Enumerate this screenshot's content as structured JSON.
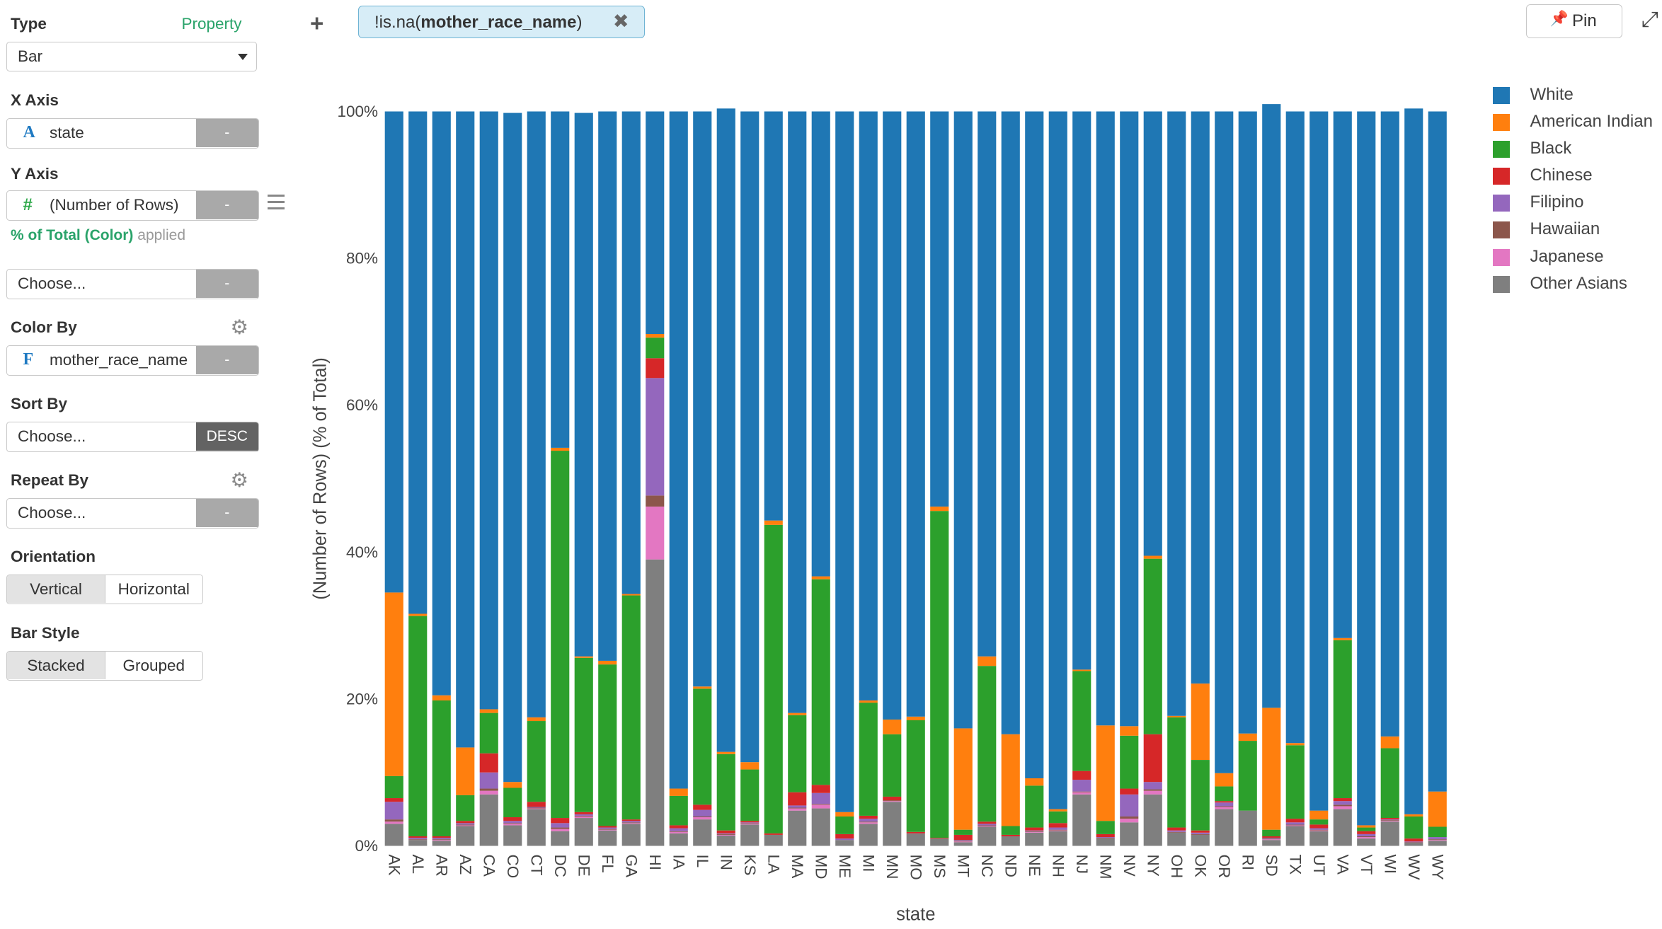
{
  "panel": {
    "type_label": "Type",
    "property_link": "Property",
    "type_value": "Bar",
    "x_axis_label": "X Axis",
    "x_axis_icon": "A",
    "x_axis_field": "state",
    "x_axis_btn": "-",
    "y_axis_label": "Y Axis",
    "y_axis_icon": "#",
    "y_axis_field": "(Number of Rows)",
    "y_axis_btn": "-",
    "y_applied_calc": "% of Total (Color)",
    "y_applied_suffix": "applied",
    "extra_choose": "Choose...",
    "extra_btn": "-",
    "color_by_label": "Color By",
    "color_by_icon": "F",
    "color_by_field": "mother_race_name",
    "color_by_btn": "-",
    "sort_by_label": "Sort By",
    "sort_by_field": "Choose...",
    "sort_by_btn": "DESC",
    "repeat_by_label": "Repeat By",
    "repeat_by_field": "Choose...",
    "repeat_by_btn": "-",
    "orientation_label": "Orientation",
    "orientation_options": [
      "Vertical",
      "Horizontal"
    ],
    "orientation_selected": "Vertical",
    "bar_style_label": "Bar Style",
    "bar_style_options": [
      "Stacked",
      "Grouped"
    ],
    "bar_style_selected": "Stacked"
  },
  "toolbar": {
    "add_icon": "+",
    "filter_text_prefix": "!is.na(",
    "filter_text_field": "mother_race_name",
    "filter_text_suffix": ")",
    "filter_remove_icon": "✖",
    "pin_label": "Pin",
    "pin_icon": "pushpin-icon",
    "expand_icon": "expand-icon"
  },
  "chart_data": {
    "type": "bar",
    "stacked": true,
    "xlabel": "state",
    "ylabel": "(Number of Rows) (% of Total)",
    "ylim": [
      0,
      100
    ],
    "yticks": [
      "0%",
      "20%",
      "40%",
      "60%",
      "80%",
      "100%"
    ],
    "grid": false,
    "legend_position": "right",
    "categories": [
      "AK",
      "AL",
      "AR",
      "AZ",
      "CA",
      "CO",
      "CT",
      "DC",
      "DE",
      "FL",
      "GA",
      "HI",
      "IA",
      "IL",
      "IN",
      "KS",
      "LA",
      "MA",
      "MD",
      "ME",
      "MI",
      "MN",
      "MO",
      "MS",
      "MT",
      "NC",
      "ND",
      "NE",
      "NH",
      "NJ",
      "NM",
      "NV",
      "NY",
      "OH",
      "OK",
      "OR",
      "RI",
      "SD",
      "TX",
      "UT",
      "VA",
      "VT",
      "WI",
      "WV",
      "WY"
    ],
    "series": [
      {
        "name": "Other Asians",
        "color": "#7f7f7f",
        "values": [
          3,
          0.8,
          0.7,
          2.7,
          7,
          2.8,
          5,
          2,
          3.8,
          2.1,
          3,
          39,
          1.7,
          3.6,
          1.4,
          2.9,
          1.5,
          4.8,
          5.1,
          0.8,
          3,
          6,
          1.7,
          1,
          0.5,
          2.6,
          1.3,
          1.8,
          2,
          7,
          1,
          3.2,
          7,
          1.8,
          1.5,
          5,
          4.8,
          0.8,
          2.7,
          2,
          5,
          1,
          3.3,
          0.4,
          0.7
        ]
      },
      {
        "name": "Japanese",
        "color": "#e377c2",
        "values": [
          0.3,
          0,
          0.1,
          0.1,
          0.5,
          0.2,
          0.1,
          0.3,
          0.2,
          0.1,
          0.1,
          7.2,
          0.2,
          0.3,
          0.1,
          0.1,
          0,
          0.3,
          0.5,
          0,
          0.2,
          0.1,
          0,
          0,
          0.1,
          0.1,
          0,
          0.1,
          0.1,
          0.3,
          0,
          0.5,
          0.5,
          0,
          0,
          0.3,
          0,
          0.1,
          0.1,
          0.1,
          0.4,
          0.2,
          0.1,
          0,
          0.1
        ]
      },
      {
        "name": "Hawaiian",
        "color": "#8c564b",
        "values": [
          0.3,
          0.1,
          0.1,
          0.1,
          0.3,
          0.1,
          0.1,
          0.2,
          0.1,
          0.1,
          0.1,
          1.5,
          0.1,
          0.1,
          0.1,
          0.1,
          0,
          0.1,
          0.1,
          0,
          0.1,
          0.1,
          0,
          0,
          0.1,
          0.1,
          0,
          0.1,
          0.1,
          0.1,
          0.1,
          0.3,
          0.2,
          0.1,
          0.1,
          0.1,
          0,
          0.1,
          0.1,
          0.1,
          0.2,
          0.1,
          0.1,
          0.1,
          0.1
        ]
      },
      {
        "name": "Filipino",
        "color": "#9467bd",
        "values": [
          2.4,
          0.2,
          0.2,
          0.2,
          2.2,
          0.3,
          0.1,
          0.6,
          0.2,
          0.2,
          0.2,
          16,
          0.4,
          0.9,
          0.1,
          0.1,
          0,
          0.3,
          1.5,
          0.2,
          0.4,
          0,
          0,
          0,
          0.1,
          0.2,
          0,
          0.1,
          0.3,
          1.6,
          0.1,
          3,
          1,
          0.2,
          0.2,
          0.5,
          0,
          0.1,
          0.3,
          0.2,
          0.5,
          0.3,
          0.1,
          0.1,
          0.3
        ]
      },
      {
        "name": "Chinese",
        "color": "#d62728",
        "values": [
          0.5,
          0.2,
          0.2,
          0.3,
          2.6,
          0.5,
          0.7,
          0.7,
          0.3,
          0.2,
          0.2,
          2.7,
          0.4,
          0.7,
          0.4,
          0.2,
          0.2,
          1.8,
          1.1,
          0.6,
          0.4,
          0.5,
          0.2,
          0.1,
          0.7,
          0.3,
          0.2,
          0.4,
          0.6,
          1.2,
          0.4,
          0.8,
          6.5,
          0.4,
          0.3,
          0.2,
          0,
          0.2,
          0.5,
          0.5,
          0.4,
          0.4,
          0.2,
          0.4,
          0
        ]
      },
      {
        "name": "Black",
        "color": "#2ca02c",
        "values": [
          3,
          30,
          18.5,
          3.5,
          5.5,
          4,
          11,
          50,
          21,
          22,
          30.5,
          2.8,
          4,
          15.8,
          10.4,
          7,
          42,
          10.5,
          28,
          2.4,
          15.4,
          8.5,
          15.2,
          44.5,
          0.7,
          21.2,
          1.2,
          5.7,
          1.6,
          13.6,
          1.8,
          7.2,
          23.9,
          15,
          9.6,
          2,
          9.5,
          0.9,
          10,
          0.7,
          21.5,
          0.5,
          9.5,
          3,
          1.4
        ]
      },
      {
        "name": "American Indian",
        "color": "#ff7f0e",
        "values": [
          25,
          0.3,
          0.7,
          6.5,
          0.5,
          0.8,
          0.5,
          0.4,
          0.2,
          0.5,
          0.2,
          0.5,
          1,
          0.3,
          0.3,
          1,
          0.6,
          0.3,
          0.4,
          0.6,
          0.3,
          2,
          0.5,
          0.6,
          13.8,
          1.3,
          12.5,
          1,
          0.3,
          0.2,
          13,
          1.3,
          0.4,
          0.2,
          10.4,
          1.8,
          1,
          16.6,
          0.3,
          1.2,
          0.3,
          0.3,
          1.6,
          0.3,
          4.8
        ]
      },
      {
        "name": "White",
        "color": "#1f77b4",
        "values": [
          65.5,
          68.4,
          79.5,
          86.6,
          81.4,
          91.1,
          82.5,
          45.8,
          74,
          74.8,
          65.7,
          30.3,
          92.2,
          78.3,
          87.6,
          88.6,
          55.7,
          81.9,
          63.3,
          95.4,
          80.2,
          82.8,
          82.4,
          53.8,
          84,
          74.2,
          84.8,
          90.8,
          95,
          76,
          83.6,
          83.7,
          60.5,
          82.3,
          77.9,
          90.1,
          84.7,
          82.2,
          86,
          95.2,
          71.7,
          97.2,
          85.1,
          96.1,
          92.6
        ]
      }
    ]
  }
}
